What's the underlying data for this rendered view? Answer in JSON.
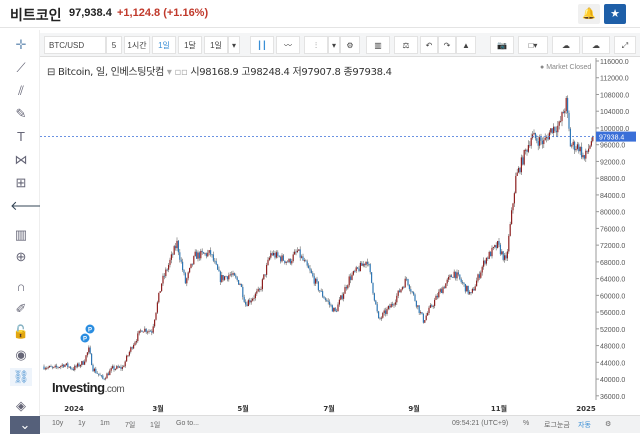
{
  "header": {
    "title": "비트코인",
    "price": "97,938.4",
    "change": "+1,124.8",
    "change_pct": "(+1.16%)",
    "alert_icon": "bell-plus-icon",
    "watch_icon": "star-icon",
    "accent": "#1e5fa8"
  },
  "toolbar": {
    "symbol": "BTC/USD",
    "items": [
      "5",
      "1시간",
      "1일",
      "1달",
      "1일"
    ],
    "active": "1일"
  },
  "legend": {
    "name": "Bitcoin, 일, 인베스팅닷컴",
    "open": "시98168.9",
    "high": "고98248.4",
    "low": "저97907.8",
    "close": "종97938.4",
    "status": "Market Closed"
  },
  "markers": [
    "P",
    "P"
  ],
  "logo": {
    "brand": "Investing",
    ".com": ".com"
  },
  "bottom": {
    "ranges": [
      "10y",
      "1y",
      "1m",
      "7일",
      "1일",
      "Go to..."
    ],
    "time": "09:54:21 (UTC+9)",
    "pct": "%",
    "log": "로그눈금",
    "auto": "자동"
  },
  "chart_data": {
    "type": "candlestick",
    "title": "Bitcoin, 일, 인베스팅닷컴",
    "last_price": "97938.4",
    "ylim": [
      36000,
      116000
    ],
    "y_ticks": [
      "116000.0",
      "112000.0",
      "108000.0",
      "104000.0",
      "100000.0",
      "96000.0",
      "92000.0",
      "88000.0",
      "84000.0",
      "80000.0",
      "76000.0",
      "72000.0",
      "68000.0",
      "64000.0",
      "60000.0",
      "56000.0",
      "52000.0",
      "48000.0",
      "44000.0",
      "40000.0",
      "36000.0"
    ],
    "x_ticks": [
      "2024",
      "3월",
      "5월",
      "7월",
      "9월",
      "11월",
      "2025"
    ],
    "colors": {
      "up": "#8e1f1f",
      "down": "#2f77b5",
      "price_line": "#3a6fd8"
    },
    "weekly_close": [
      [
        "2023-12-10",
        43000
      ],
      [
        "2023-12-17",
        42500
      ],
      [
        "2023-12-24",
        43500
      ],
      [
        "2023-12-31",
        42500
      ],
      [
        "2024-01-07",
        44000
      ],
      [
        "2024-01-11",
        47000
      ],
      [
        "2024-01-14",
        42500
      ],
      [
        "2024-01-21",
        40000
      ],
      [
        "2024-01-28",
        42500
      ],
      [
        "2024-02-04",
        42700
      ],
      [
        "2024-02-11",
        48000
      ],
      [
        "2024-02-18",
        52000
      ],
      [
        "2024-02-25",
        51500
      ],
      [
        "2024-03-03",
        63000
      ],
      [
        "2024-03-10",
        69000
      ],
      [
        "2024-03-14",
        72500
      ],
      [
        "2024-03-20",
        63000
      ],
      [
        "2024-03-27",
        69500
      ],
      [
        "2024-04-07",
        70000
      ],
      [
        "2024-04-14",
        64000
      ],
      [
        "2024-04-21",
        65000
      ],
      [
        "2024-04-28",
        63000
      ],
      [
        "2024-05-02",
        58000
      ],
      [
        "2024-05-12",
        61000
      ],
      [
        "2024-05-20",
        70000
      ],
      [
        "2024-06-02",
        68000
      ],
      [
        "2024-06-08",
        70500
      ],
      [
        "2024-06-18",
        65000
      ],
      [
        "2024-06-25",
        60500
      ],
      [
        "2024-07-05",
        56000
      ],
      [
        "2024-07-15",
        64000
      ],
      [
        "2024-07-28",
        68500
      ],
      [
        "2024-08-05",
        54000
      ],
      [
        "2024-08-15",
        58000
      ],
      [
        "2024-08-25",
        64000
      ],
      [
        "2024-09-06",
        54000
      ],
      [
        "2024-09-18",
        61000
      ],
      [
        "2024-09-28",
        65500
      ],
      [
        "2024-10-10",
        60000
      ],
      [
        "2024-10-20",
        68500
      ],
      [
        "2024-10-29",
        72000
      ],
      [
        "2024-11-04",
        68000
      ],
      [
        "2024-11-11",
        88000
      ],
      [
        "2024-11-22",
        98000
      ],
      [
        "2024-12-01",
        96500
      ],
      [
        "2024-12-07",
        100000
      ],
      [
        "2024-12-12",
        100500
      ],
      [
        "2024-12-17",
        106000
      ],
      [
        "2024-12-20",
        96000
      ],
      [
        "2024-12-26",
        95500
      ],
      [
        "2024-12-30",
        92500
      ],
      [
        "2025-01-05",
        97938
      ]
    ]
  }
}
